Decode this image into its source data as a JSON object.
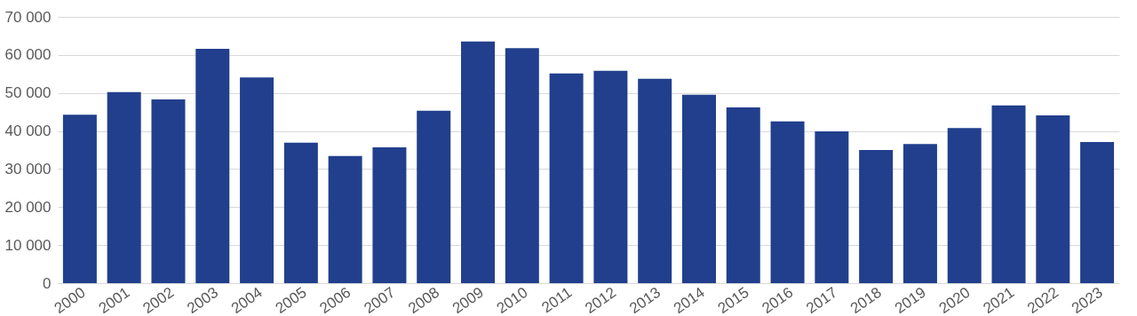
{
  "chart_data": {
    "type": "bar",
    "categories": [
      "2000",
      "2001",
      "2002",
      "2003",
      "2004",
      "2005",
      "2006",
      "2007",
      "2008",
      "2009",
      "2010",
      "2011",
      "2012",
      "2013",
      "2014",
      "2015",
      "2016",
      "2017",
      "2018",
      "2019",
      "2020",
      "2021",
      "2022",
      "2023"
    ],
    "series": [
      {
        "color": "#213f8d",
        "values": [
          44300,
          50200,
          48300,
          61600,
          54100,
          36900,
          33400,
          35700,
          45300,
          63500,
          61800,
          55100,
          55800,
          53700,
          49500,
          46200,
          42500,
          39900,
          35000,
          36600,
          40800,
          46700,
          44100,
          37100
        ]
      }
    ],
    "ylim": [
      0,
      70000
    ],
    "yticks": [
      0,
      {
        "value": 10000,
        "label": "10 000"
      },
      {
        "value": 20000,
        "label": "20 000"
      },
      {
        "value": 30000,
        "label": "30 000"
      },
      {
        "value": 40000,
        "label": "40 000"
      },
      {
        "value": 50000,
        "label": "50 000"
      },
      {
        "value": 60000,
        "label": "60 000"
      },
      {
        "value": 70000,
        "label": "70 000"
      }
    ],
    "grid": "y"
  }
}
